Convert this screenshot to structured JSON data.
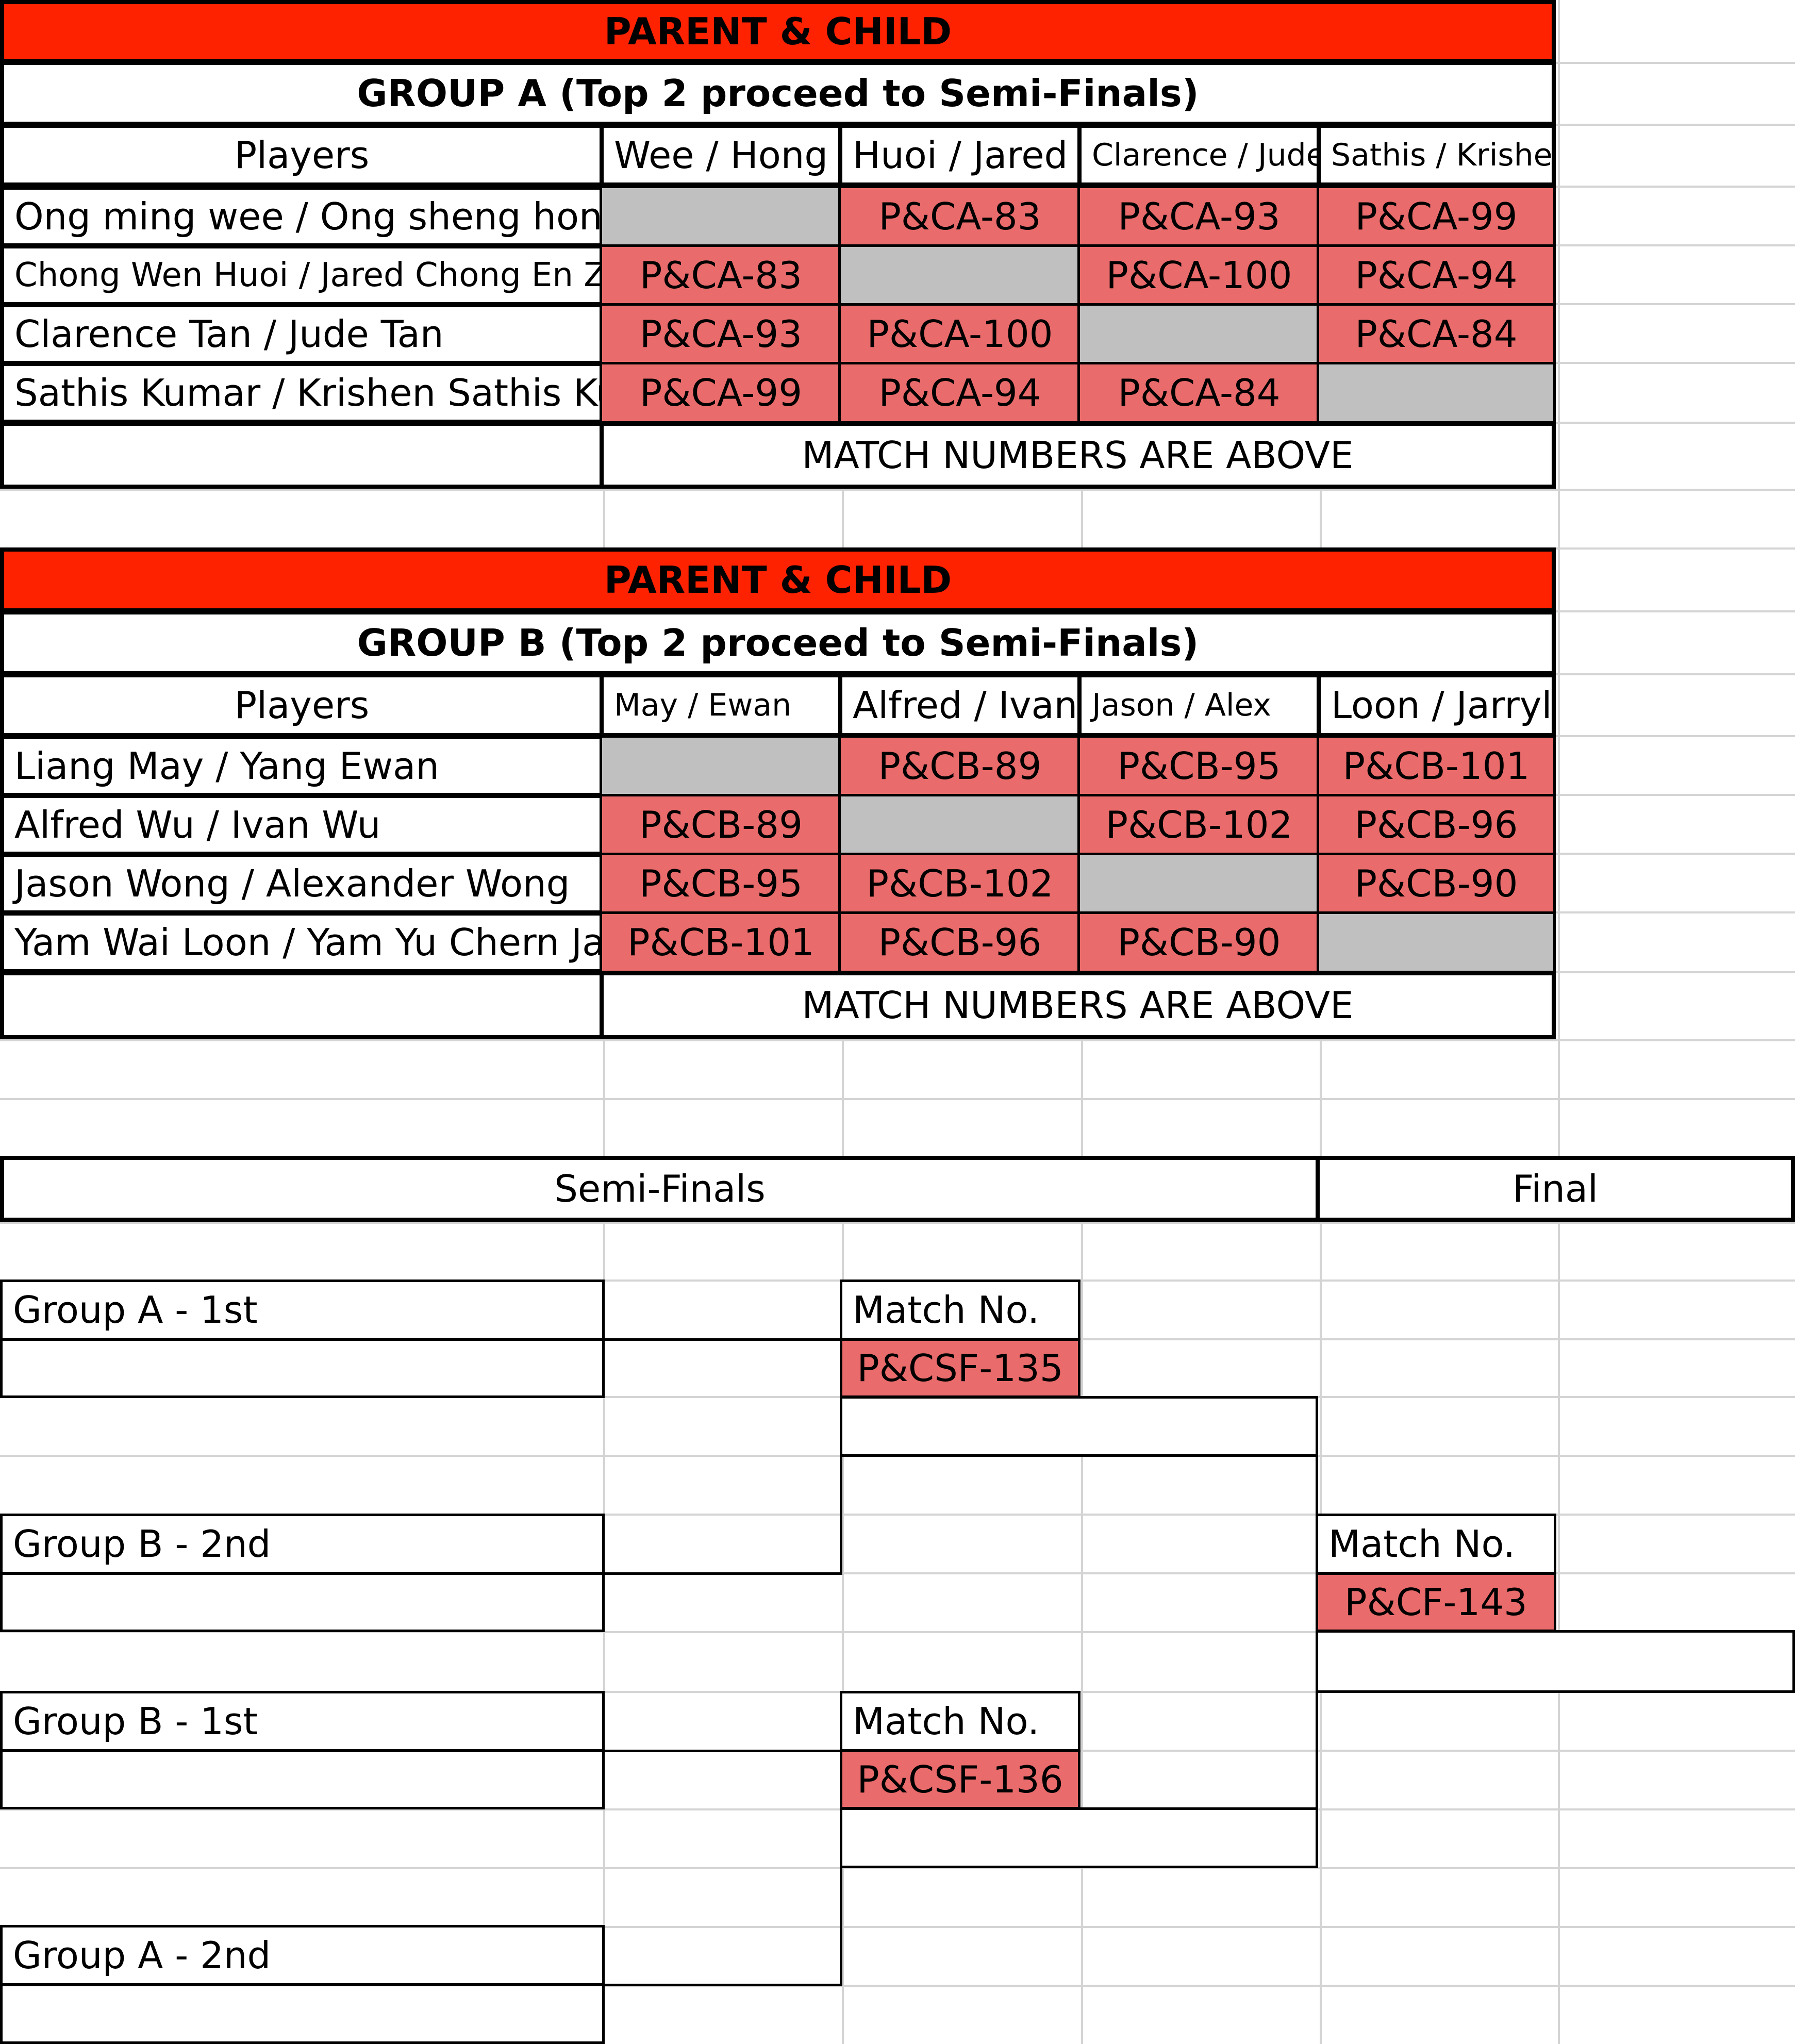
{
  "group_a": {
    "title": "PARENT & CHILD",
    "subtitle": "GROUP A (Top 2 proceed to Semi-Finals)",
    "players_header": "Players",
    "columns": [
      "Wee / Hong",
      "Huoi / Jared",
      "Clarence / Jude",
      "Sathis / Krishen"
    ],
    "rows": [
      {
        "name": "Ong ming wee / Ong sheng hong",
        "matches": [
          "",
          "P&CA-83",
          "P&CA-93",
          "P&CA-99"
        ]
      },
      {
        "name": "Chong Wen Huoi / Jared Chong En Ze",
        "matches": [
          "P&CA-83",
          "",
          "P&CA-100",
          "P&CA-94"
        ]
      },
      {
        "name": "Clarence Tan / Jude Tan",
        "matches": [
          "P&CA-93",
          "P&CA-100",
          "",
          "P&CA-84"
        ]
      },
      {
        "name": "Sathis Kumar / Krishen Sathis Kumar",
        "matches": [
          "P&CA-99",
          "P&CA-94",
          "P&CA-84",
          ""
        ]
      }
    ],
    "note": "MATCH NUMBERS ARE ABOVE"
  },
  "group_b": {
    "title": "PARENT & CHILD",
    "subtitle": "GROUP B (Top 2 proceed to Semi-Finals)",
    "players_header": "Players",
    "columns": [
      "May / Ewan",
      "Alfred / Ivan",
      "Jason / Alex",
      "Loon / Jarryl"
    ],
    "rows": [
      {
        "name": "Liang May / Yang Ewan",
        "matches": [
          "",
          "P&CB-89",
          "P&CB-95",
          "P&CB-101"
        ]
      },
      {
        "name": "Alfred Wu / Ivan Wu",
        "matches": [
          "P&CB-89",
          "",
          "P&CB-102",
          "P&CB-96"
        ]
      },
      {
        "name": "Jason Wong / Alexander Wong",
        "matches": [
          "P&CB-95",
          "P&CB-102",
          "",
          "P&CB-90"
        ]
      },
      {
        "name": "Yam Wai Loon / Yam Yu Chern Jarryl",
        "matches": [
          "P&CB-101",
          "P&CB-96",
          "P&CB-90",
          ""
        ]
      }
    ],
    "note": "MATCH NUMBERS ARE ABOVE"
  },
  "bracket": {
    "semi_finals_label": "Semi-Finals",
    "final_label": "Final",
    "sf1": {
      "top": "Group A - 1st",
      "bottom": "Group B - 2nd",
      "match_label": "Match No.",
      "match": "P&CSF-135"
    },
    "sf2": {
      "top": "Group B - 1st",
      "bottom": "Group A - 2nd",
      "match_label": "Match No.",
      "match": "P&CSF-136"
    },
    "final": {
      "match_label": "Match No.",
      "match": "P&CF-143"
    }
  }
}
